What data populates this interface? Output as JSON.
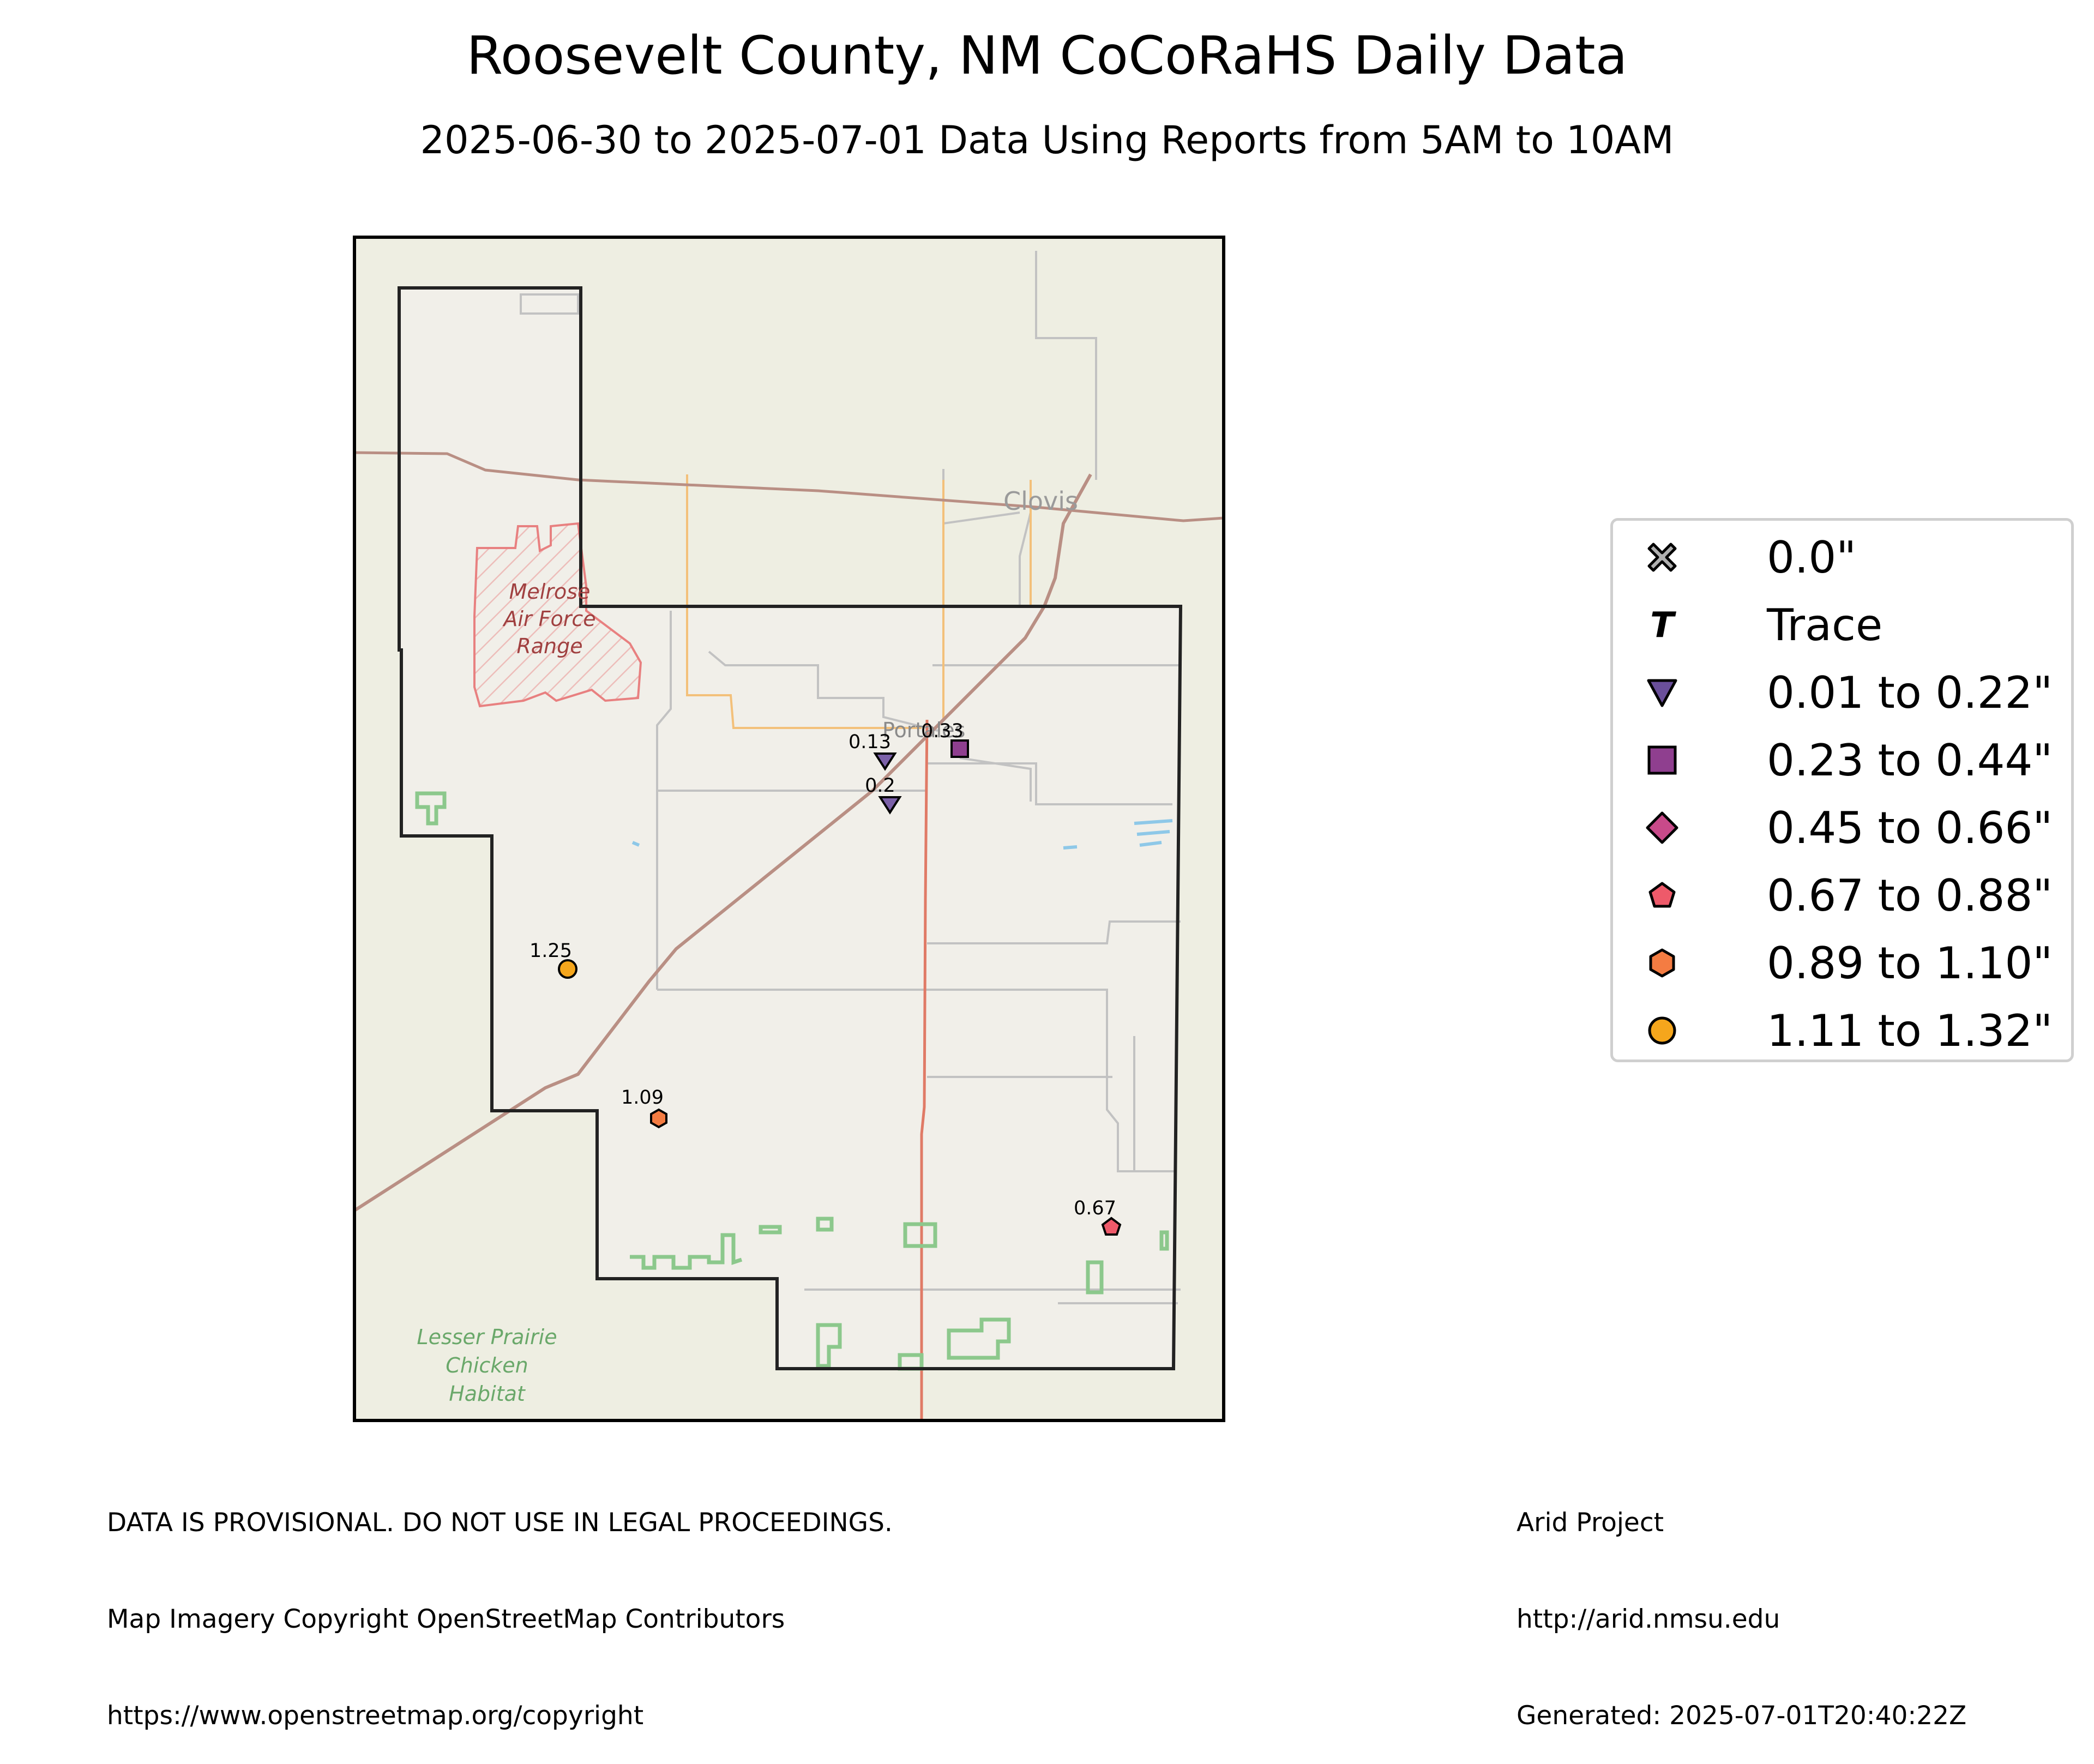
{
  "title": "Roosevelt County, NM CoCoRaHS Daily Data",
  "subtitle": "2025-06-30 to 2025-07-01 Data Using Reports from 5AM to 10AM",
  "map": {
    "basemap_colors": {
      "land": "#eeeee2",
      "county_fill": "#f1efe9",
      "county_border": "#222222",
      "frame": "#000000",
      "highway": "#e07a66",
      "railroad": "#b98f84",
      "minor_road": "#c2c2c2",
      "orange_road": "#f3c07a",
      "military": "#e88080",
      "protected": "#8cc88c",
      "water": "#8ec8e8"
    },
    "place_labels": {
      "clovis": "Clovis",
      "portales": "Portales",
      "melrose_line1": "Melrose",
      "melrose_line2": "Air Force",
      "melrose_line3": "Range",
      "lesser_line1": "Lesser Prairie",
      "lesser_line2": "Chicken",
      "lesser_line3": "Habitat"
    },
    "stations": [
      {
        "label": "0.13",
        "symbol": "triangle-down",
        "color": "#7b60a8"
      },
      {
        "label": "0.2",
        "symbol": "triangle-down",
        "color": "#7b60a8"
      },
      {
        "label": "0.33",
        "symbol": "square",
        "color": "#8f3f8f"
      },
      {
        "label": "1.25",
        "symbol": "circle",
        "color": "#f5a61c"
      },
      {
        "label": "1.09",
        "symbol": "hexagon",
        "color": "#f47c42"
      },
      {
        "label": "0.67",
        "symbol": "pentagon",
        "color": "#ee5a6a"
      }
    ]
  },
  "legend": {
    "items": [
      {
        "label": "0.0\"",
        "symbol": "x-icon",
        "color": "#b0b0b0"
      },
      {
        "label": "Trace",
        "symbol": "trace-t-icon",
        "color": "#000000"
      },
      {
        "label": "0.01 to 0.22\"",
        "symbol": "triangle-down-icon",
        "color": "#6a4f9a"
      },
      {
        "label": "0.23 to 0.44\"",
        "symbol": "square-icon",
        "color": "#8f3f8f"
      },
      {
        "label": "0.45 to 0.66\"",
        "symbol": "diamond-icon",
        "color": "#c84a8a"
      },
      {
        "label": "0.67 to 0.88\"",
        "symbol": "pentagon-icon",
        "color": "#ee5a6a"
      },
      {
        "label": "0.89 to 1.10\"",
        "symbol": "hexagon-icon",
        "color": "#f47c42"
      },
      {
        "label": "1.11 to 1.32\"",
        "symbol": "circle-icon",
        "color": "#f5a61c"
      }
    ]
  },
  "footer": {
    "left_line1": "DATA IS PROVISIONAL. DO NOT USE IN LEGAL PROCEEDINGS.",
    "left_line2": "Map Imagery Copyright OpenStreetMap Contributors",
    "left_line3": "https://www.openstreetmap.org/copyright",
    "right_line1": "Arid Project",
    "right_line2": "http://arid.nmsu.edu",
    "right_line3": "Generated: 2025-07-01T20:40:22Z"
  }
}
